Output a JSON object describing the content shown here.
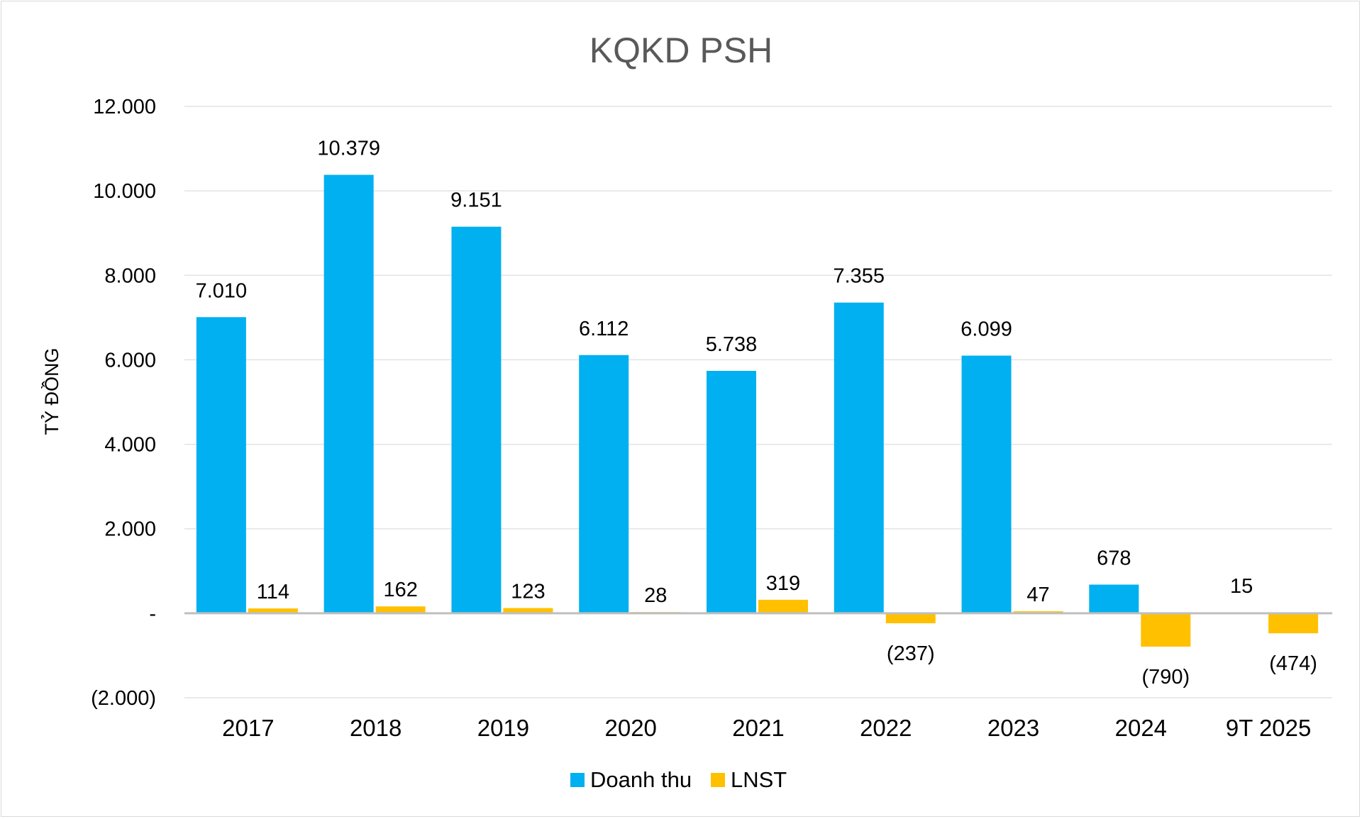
{
  "chart_data": {
    "type": "bar",
    "title": "KQKD PSH",
    "xlabel": "",
    "ylabel": "TỶ ĐỒNG",
    "ylim": [
      -2000,
      12000
    ],
    "yticks": [
      {
        "value": 12000,
        "label": "12.000"
      },
      {
        "value": 10000,
        "label": "10.000"
      },
      {
        "value": 8000,
        "label": "8.000"
      },
      {
        "value": 6000,
        "label": "6.000"
      },
      {
        "value": 4000,
        "label": "4.000"
      },
      {
        "value": 2000,
        "label": "2.000"
      },
      {
        "value": 0,
        "label": "-"
      },
      {
        "value": -2000,
        "label": "(2.000)"
      }
    ],
    "categories": [
      "2017",
      "2018",
      "2019",
      "2020",
      "2021",
      "2022",
      "2023",
      "2024",
      "9T 2025"
    ],
    "series": [
      {
        "name": "Doanh thu",
        "color": "#00B0F0",
        "values": [
          7010,
          10379,
          9151,
          6112,
          5738,
          7355,
          6099,
          678,
          15
        ],
        "labels": [
          "7.010",
          "10.379",
          "9.151",
          "6.112",
          "5.738",
          "7.355",
          "6.099",
          "678",
          "15"
        ]
      },
      {
        "name": "LNST",
        "color": "#FFC000",
        "values": [
          114,
          162,
          123,
          28,
          319,
          -237,
          47,
          -790,
          -474
        ],
        "labels": [
          "114",
          "162",
          "123",
          "28",
          "319",
          "(237)",
          "47",
          "(790)",
          "(474)"
        ]
      }
    ],
    "grid": true,
    "legend": "bottom"
  }
}
